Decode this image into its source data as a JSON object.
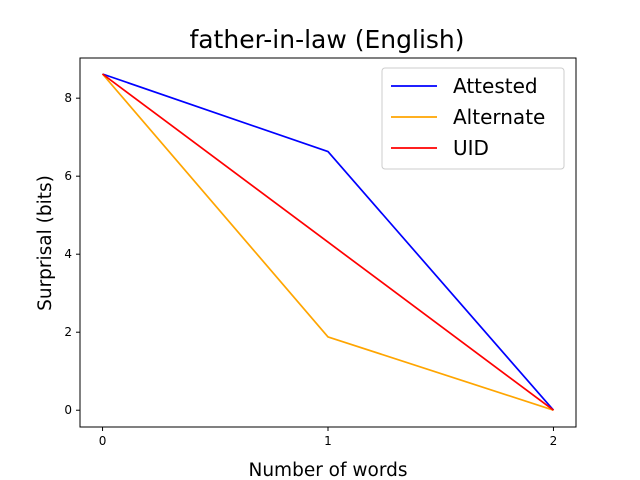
{
  "chart_data": {
    "type": "line",
    "title": "father-in-law (English)",
    "xlabel": "Number of words",
    "ylabel": "Surprisal (bits)",
    "x": [
      0,
      1,
      2
    ],
    "xticks": [
      "0",
      "1",
      "2"
    ],
    "yticks": [
      "0",
      "2",
      "4",
      "6",
      "8"
    ],
    "xlim": [
      -0.1,
      2.1
    ],
    "ylim": [
      -0.43,
      9.03
    ],
    "grid": false,
    "legend_position": "top-right",
    "series": [
      {
        "name": "Attested",
        "color": "#0000ff",
        "values": [
          8.62,
          6.63,
          0.0
        ]
      },
      {
        "name": "Alternate",
        "color": "#ffa500",
        "values": [
          8.62,
          1.88,
          0.0
        ]
      },
      {
        "name": "UID",
        "color": "#ff0000",
        "values": [
          8.62,
          4.31,
          0.0
        ]
      }
    ]
  }
}
